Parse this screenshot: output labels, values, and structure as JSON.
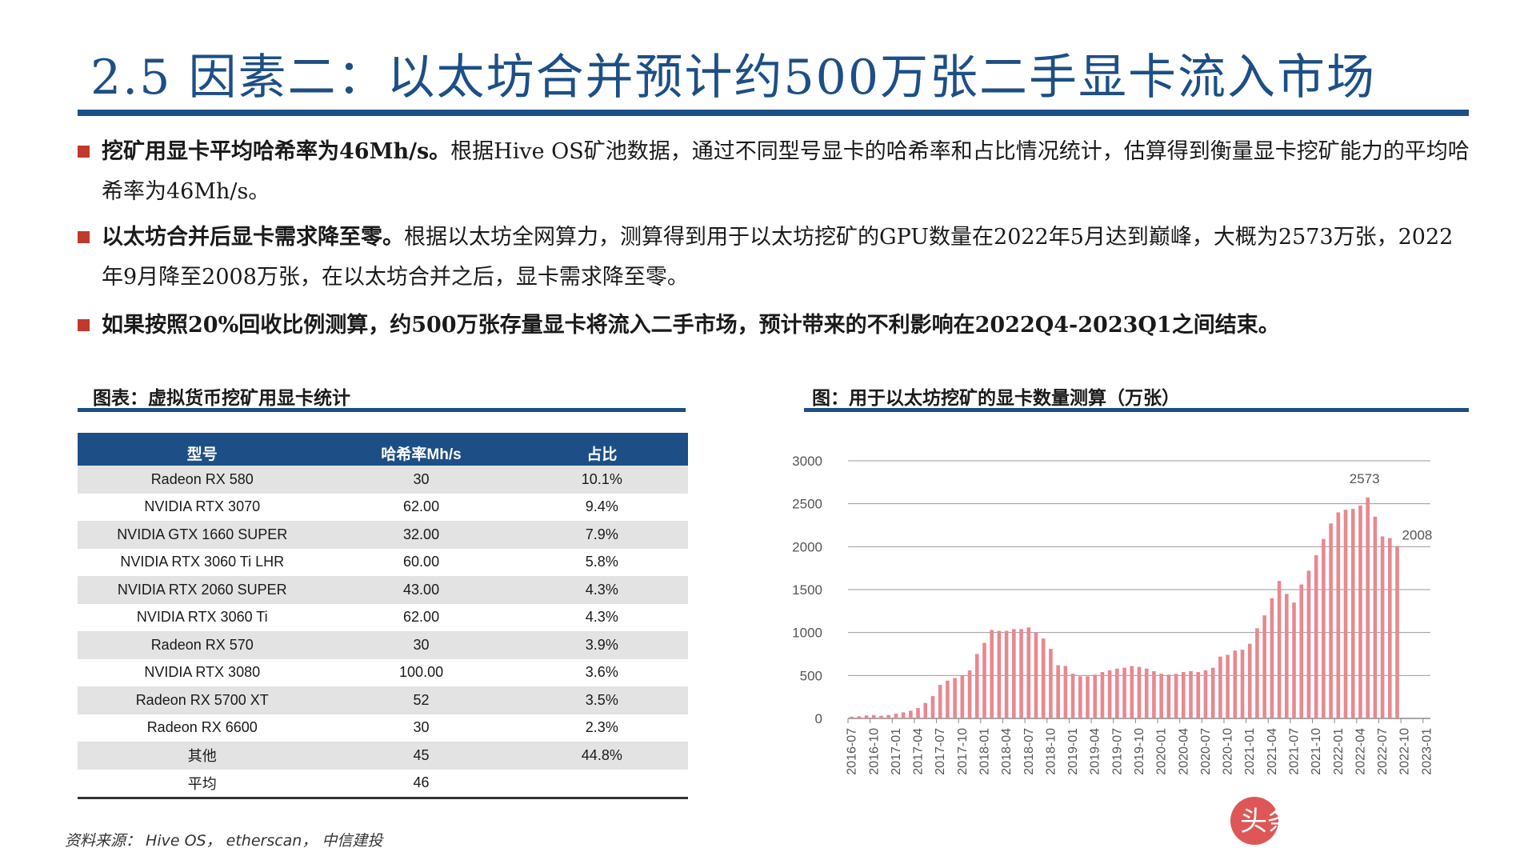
{
  "title": "2.5 因素二：以太坊合并预计约500万张二手显卡流入市场",
  "bullets": [
    {
      "bold": "挖矿用显卡平均哈希率为46Mh/s。",
      "text": "根据Hive OS矿池数据，通过不同型号显卡的哈希率和占比情况统计，估算得到衡量显卡挖矿能力的平均哈希率为46Mh/s。"
    },
    {
      "bold": "以太坊合并后显卡需求降至零。",
      "text": "根据以太坊全网算力，测算得到用于以太坊挖矿的GPU数量在2022年5月达到巅峰，大概为2573万张，2022年9月降至2008万张，在以太坊合并之后，显卡需求降至零。"
    },
    {
      "bold": "如果按照20%回收比例测算，约500万张存量显卡将流入二手市场，预计带来的不利影响在2022Q4-2023Q1之间结束。",
      "text": ""
    }
  ],
  "table_caption": "图表：虚拟货币挖矿用显卡统计",
  "table": {
    "headers": [
      "型号",
      "哈希率Mh/s",
      "占比"
    ],
    "rows": [
      [
        "Radeon RX 580",
        "30",
        "10.1%"
      ],
      [
        "NVIDIA RTX 3070",
        "62.00",
        "9.4%"
      ],
      [
        "NVIDIA GTX 1660 SUPER",
        "32.00",
        "7.9%"
      ],
      [
        "NVIDIA RTX 3060 Ti LHR",
        "60.00",
        "5.8%"
      ],
      [
        "NVIDIA RTX 2060 SUPER",
        "43.00",
        "4.3%"
      ],
      [
        "NVIDIA RTX 3060 Ti",
        "62.00",
        "4.3%"
      ],
      [
        "Radeon RX 570",
        "30",
        "3.9%"
      ],
      [
        "NVIDIA RTX 3080",
        "100.00",
        "3.6%"
      ],
      [
        "Radeon RX 5700 XT",
        "52",
        "3.5%"
      ],
      [
        "Radeon RX 6600",
        "30",
        "2.3%"
      ],
      [
        "其他",
        "45",
        "44.8%"
      ],
      [
        "平均",
        "46",
        ""
      ]
    ]
  },
  "source": "资料来源： Hive OS，  etherscan，  中信建投",
  "watermark": "头条 @未来智库",
  "colors": {
    "accent": "#1d4f86",
    "bar": "#e8888f",
    "bullet": "#c0392b"
  },
  "chart_data": {
    "type": "bar",
    "title": "图：用于以太坊挖矿的显卡数量测算（万张）",
    "ylim": [
      0,
      3000
    ],
    "yticks": [
      0,
      500,
      1000,
      1500,
      2000,
      2500,
      3000
    ],
    "xticks": [
      "2016-07",
      "2016-10",
      "2017-01",
      "2017-04",
      "2017-07",
      "2017-10",
      "2018-01",
      "2018-04",
      "2018-07",
      "2018-10",
      "2019-01",
      "2019-04",
      "2019-07",
      "2019-10",
      "2020-01",
      "2020-04",
      "2020-07",
      "2020-10",
      "2021-01",
      "2021-04",
      "2021-07",
      "2021-10",
      "2022-01",
      "2022-04",
      "2022-07",
      "2022-10",
      "2023-01"
    ],
    "annotations": [
      {
        "x": "2022-05",
        "label": "2573"
      },
      {
        "x": "2022-09",
        "label": "2008"
      }
    ],
    "categories": [
      "2016-07",
      "2016-08",
      "2016-09",
      "2016-10",
      "2016-11",
      "2016-12",
      "2017-01",
      "2017-02",
      "2017-03",
      "2017-04",
      "2017-05",
      "2017-06",
      "2017-07",
      "2017-08",
      "2017-09",
      "2017-10",
      "2017-11",
      "2017-12",
      "2018-01",
      "2018-02",
      "2018-03",
      "2018-04",
      "2018-05",
      "2018-06",
      "2018-07",
      "2018-08",
      "2018-09",
      "2018-10",
      "2018-11",
      "2018-12",
      "2019-01",
      "2019-02",
      "2019-03",
      "2019-04",
      "2019-05",
      "2019-06",
      "2019-07",
      "2019-08",
      "2019-09",
      "2019-10",
      "2019-11",
      "2019-12",
      "2020-01",
      "2020-02",
      "2020-03",
      "2020-04",
      "2020-05",
      "2020-06",
      "2020-07",
      "2020-08",
      "2020-09",
      "2020-10",
      "2020-11",
      "2020-12",
      "2021-01",
      "2021-02",
      "2021-03",
      "2021-04",
      "2021-05",
      "2021-06",
      "2021-07",
      "2021-08",
      "2021-09",
      "2021-10",
      "2021-11",
      "2021-12",
      "2022-01",
      "2022-02",
      "2022-03",
      "2022-04",
      "2022-05",
      "2022-06",
      "2022-07",
      "2022-08",
      "2022-09",
      "2022-10",
      "2022-11",
      "2022-12",
      "2023-01"
    ],
    "values": [
      20,
      25,
      35,
      40,
      30,
      40,
      55,
      70,
      90,
      120,
      180,
      260,
      390,
      440,
      470,
      500,
      560,
      750,
      880,
      1030,
      1020,
      1020,
      1040,
      1040,
      1060,
      1000,
      930,
      810,
      620,
      610,
      520,
      490,
      490,
      510,
      540,
      560,
      580,
      590,
      610,
      600,
      580,
      550,
      520,
      510,
      520,
      540,
      550,
      540,
      560,
      590,
      720,
      740,
      790,
      800,
      870,
      1050,
      1200,
      1400,
      1600,
      1450,
      1350,
      1560,
      1720,
      1900,
      2090,
      2270,
      2400,
      2430,
      2440,
      2480,
      2573,
      2350,
      2120,
      2100,
      2008,
      0,
      0,
      0,
      0
    ]
  }
}
